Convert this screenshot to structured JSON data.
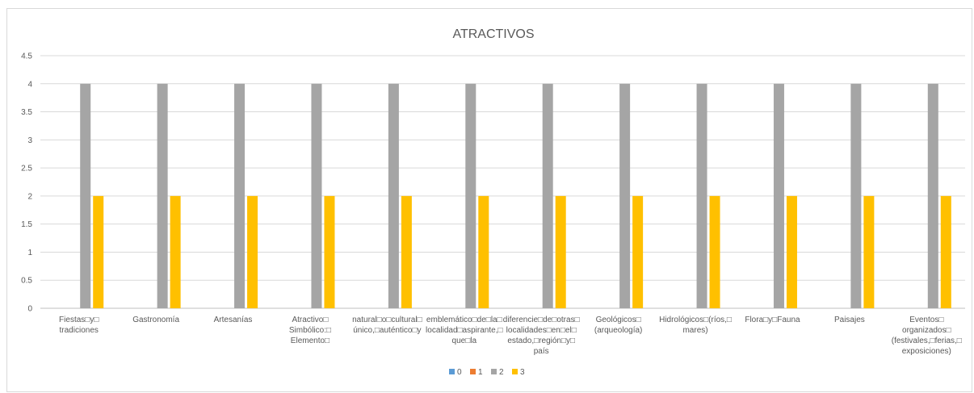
{
  "chart_data": {
    "type": "bar",
    "title": "ATRACTIVOS",
    "xlabel": "",
    "ylabel": "",
    "ylim": [
      0,
      4.5
    ],
    "yticks": [
      "0",
      "0.5",
      "1",
      "1.5",
      "2",
      "2.5",
      "3",
      "3.5",
      "4",
      "4.5"
    ],
    "grid": true,
    "legend_position": "bottom",
    "categories": [
      [
        "Fiestas\u0000y\u0000",
        "tradiciones"
      ],
      [
        "Gastronomía"
      ],
      [
        "Artesanías"
      ],
      [
        "Atractivo\u0000",
        "Simbólico:\u0000",
        "Elemento\u0000"
      ],
      [
        "natural\u0000o\u0000cultural\u0000",
        "único,\u0000auténtico\u0000y"
      ],
      [
        "emblemático\u0000de\u0000la\u0000",
        "localidad\u0000aspirante,\u0000",
        "que\u0000la"
      ],
      [
        "diferencie\u0000de\u0000otras\u0000",
        "localidades\u0000en\u0000el\u0000",
        "estado,\u0000región\u0000y\u0000",
        "país"
      ],
      [
        "Geológicos\u0000",
        "(arqueología)"
      ],
      [
        "Hidrológicos\u0000(ríos,\u0000",
        "mares)"
      ],
      [
        "Flora\u0000y\u0000Fauna"
      ],
      [
        "Paisajes"
      ],
      [
        "Eventos\u0000",
        "organizados\u0000",
        "(festivales,\u0000ferias,\u0000",
        "exposiciones)"
      ]
    ],
    "series": [
      {
        "name": "0",
        "color": "#5b9bd5",
        "values": [
          0,
          0,
          0,
          0,
          0,
          0,
          0,
          0,
          0,
          0,
          0,
          0
        ]
      },
      {
        "name": "1",
        "color": "#ed7d31",
        "values": [
          0,
          0,
          0,
          0,
          0,
          0,
          0,
          0,
          0,
          0,
          0,
          0
        ]
      },
      {
        "name": "2",
        "color": "#a5a5a5",
        "values": [
          4,
          4,
          4,
          4,
          4,
          4,
          4,
          4,
          4,
          4,
          4,
          4
        ]
      },
      {
        "name": "3",
        "color": "#ffc000",
        "values": [
          2,
          2,
          2,
          2,
          2,
          2,
          2,
          2,
          2,
          2,
          2,
          2
        ]
      }
    ]
  }
}
